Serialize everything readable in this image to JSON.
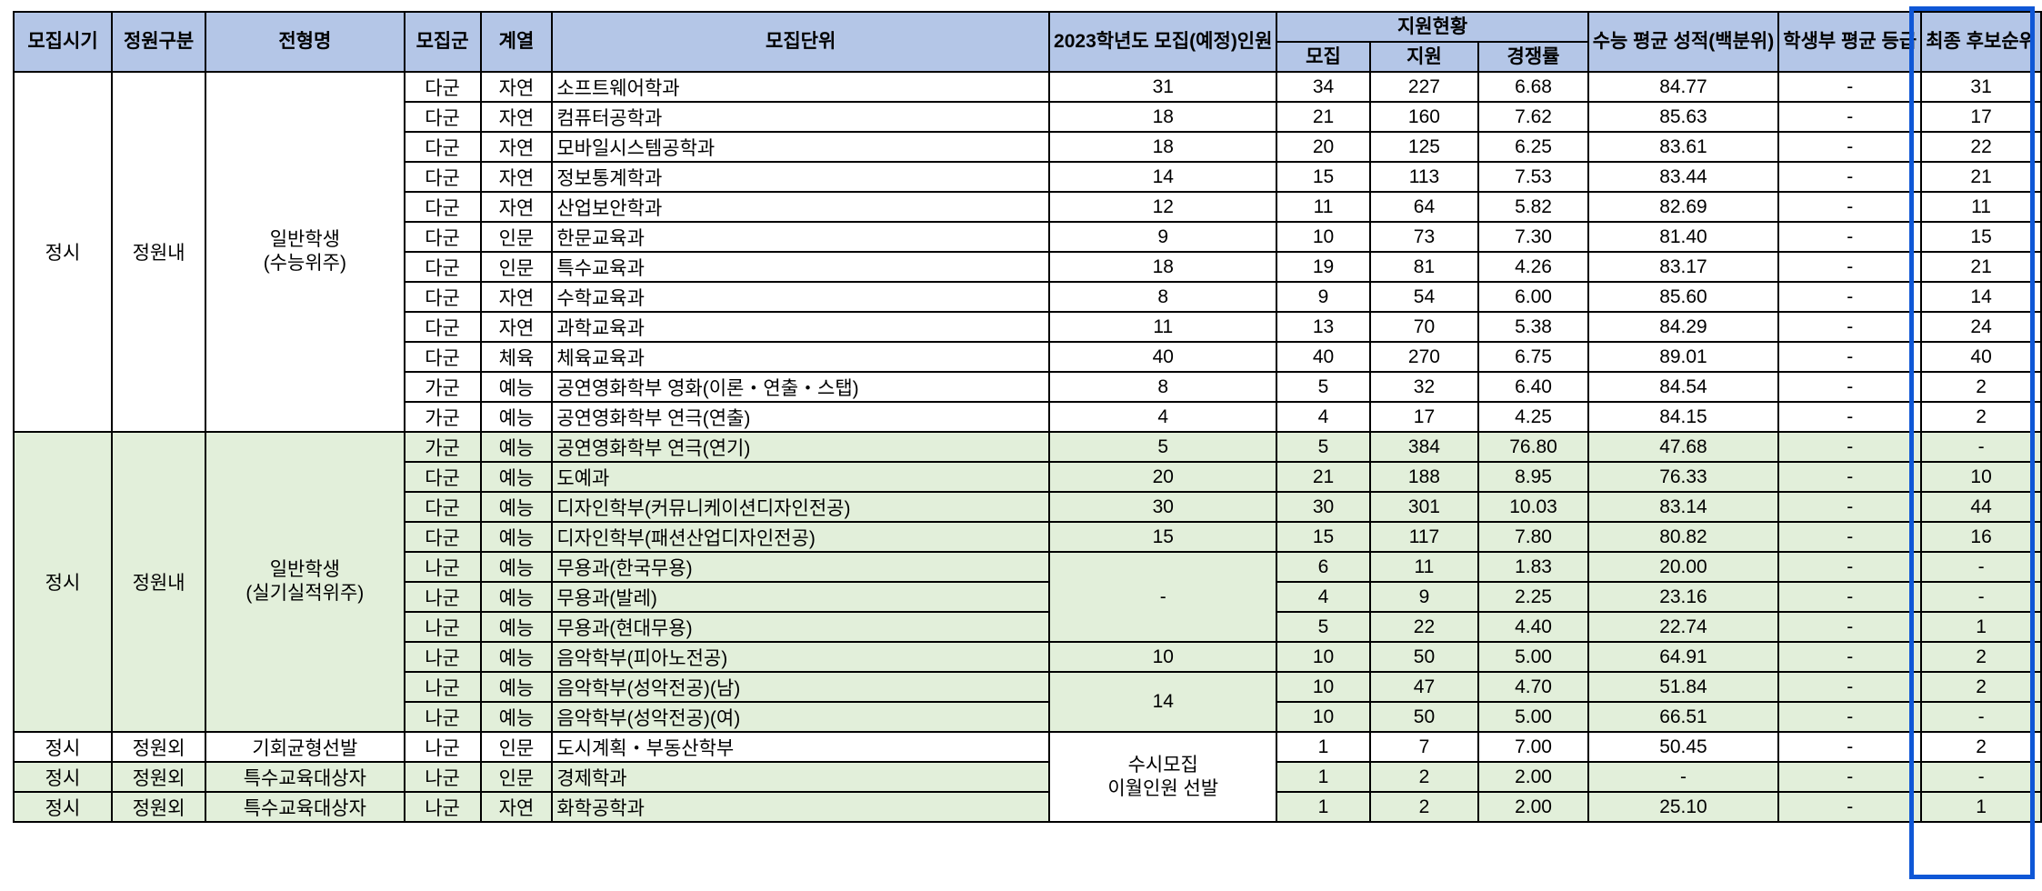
{
  "headers": {
    "period": "모집시기",
    "quota_type": "정원구분",
    "admission_type": "전형명",
    "group": "모집군",
    "field": "계열",
    "unit": "모집단위",
    "planned": "2023학년도\n모집(예정)인원",
    "applications": "지원현황",
    "recruit": "모집",
    "applied": "지원",
    "ratio": "경쟁률",
    "csat": "수능 평균\n성적(백분위)",
    "gpa": "학생부\n평균 등급",
    "rank": "최종\n후보순위"
  },
  "colors": {
    "header": "#b4c6e7",
    "green_row": "#e2efda",
    "highlight_border": "#0f57d6"
  },
  "highlighted_column": "rank",
  "rows": [
    {
      "bg": "white",
      "period": "정시",
      "quota": "정원내",
      "type": "일반학생\n(수능위주)",
      "group": "다군",
      "field": "자연",
      "unit": "소프트웨어학과",
      "planned": "31",
      "recruit": "34",
      "applied": "227",
      "ratio": "6.68",
      "csat": "84.77",
      "gpa": "-",
      "rank": "31"
    },
    {
      "bg": "white",
      "period": null,
      "quota": null,
      "type": null,
      "group": "다군",
      "field": "자연",
      "unit": "컴퓨터공학과",
      "planned": "18",
      "recruit": "21",
      "applied": "160",
      "ratio": "7.62",
      "csat": "85.63",
      "gpa": "-",
      "rank": "17"
    },
    {
      "bg": "white",
      "period": null,
      "quota": null,
      "type": null,
      "group": "다군",
      "field": "자연",
      "unit": "모바일시스템공학과",
      "planned": "18",
      "recruit": "20",
      "applied": "125",
      "ratio": "6.25",
      "csat": "83.61",
      "gpa": "-",
      "rank": "22"
    },
    {
      "bg": "white",
      "period": null,
      "quota": null,
      "type": null,
      "group": "다군",
      "field": "자연",
      "unit": "정보통계학과",
      "planned": "14",
      "recruit": "15",
      "applied": "113",
      "ratio": "7.53",
      "csat": "83.44",
      "gpa": "-",
      "rank": "21"
    },
    {
      "bg": "white",
      "period": null,
      "quota": null,
      "type": null,
      "group": "다군",
      "field": "자연",
      "unit": "산업보안학과",
      "planned": "12",
      "recruit": "11",
      "applied": "64",
      "ratio": "5.82",
      "csat": "82.69",
      "gpa": "-",
      "rank": "11"
    },
    {
      "bg": "white",
      "period": null,
      "quota": null,
      "type": null,
      "group": "다군",
      "field": "인문",
      "unit": "한문교육과",
      "planned": "9",
      "recruit": "10",
      "applied": "73",
      "ratio": "7.30",
      "csat": "81.40",
      "gpa": "-",
      "rank": "15"
    },
    {
      "bg": "white",
      "period": null,
      "quota": null,
      "type": null,
      "group": "다군",
      "field": "인문",
      "unit": "특수교육과",
      "planned": "18",
      "recruit": "19",
      "applied": "81",
      "ratio": "4.26",
      "csat": "83.17",
      "gpa": "-",
      "rank": "21"
    },
    {
      "bg": "white",
      "period": null,
      "quota": null,
      "type": null,
      "group": "다군",
      "field": "자연",
      "unit": "수학교육과",
      "planned": "8",
      "recruit": "9",
      "applied": "54",
      "ratio": "6.00",
      "csat": "85.60",
      "gpa": "-",
      "rank": "14"
    },
    {
      "bg": "white",
      "period": null,
      "quota": null,
      "type": null,
      "group": "다군",
      "field": "자연",
      "unit": "과학교육과",
      "planned": "11",
      "recruit": "13",
      "applied": "70",
      "ratio": "5.38",
      "csat": "84.29",
      "gpa": "-",
      "rank": "24"
    },
    {
      "bg": "white",
      "period": null,
      "quota": null,
      "type": null,
      "group": "다군",
      "field": "체육",
      "unit": "체육교육과",
      "planned": "40",
      "recruit": "40",
      "applied": "270",
      "ratio": "6.75",
      "csat": "89.01",
      "gpa": "-",
      "rank": "40"
    },
    {
      "bg": "white",
      "period": null,
      "quota": null,
      "type": null,
      "group": "가군",
      "field": "예능",
      "unit": "공연영화학부 영화(이론・연출・스탭)",
      "planned": "8",
      "recruit": "5",
      "applied": "32",
      "ratio": "6.40",
      "csat": "84.54",
      "gpa": "-",
      "rank": "2"
    },
    {
      "bg": "white",
      "period": null,
      "quota": null,
      "type": null,
      "group": "가군",
      "field": "예능",
      "unit": "공연영화학부 연극(연출)",
      "planned": "4",
      "recruit": "4",
      "applied": "17",
      "ratio": "4.25",
      "csat": "84.15",
      "gpa": "-",
      "rank": "2"
    },
    {
      "bg": "green",
      "period": "정시",
      "quota": "정원내",
      "type": "일반학생\n(실기실적위주)",
      "group": "가군",
      "field": "예능",
      "unit": "공연영화학부 연극(연기)",
      "planned": "5",
      "recruit": "5",
      "applied": "384",
      "ratio": "76.80",
      "csat": "47.68",
      "gpa": "-",
      "rank": "-"
    },
    {
      "bg": "green",
      "period": null,
      "quota": null,
      "type": null,
      "group": "다군",
      "field": "예능",
      "unit": "도예과",
      "planned": "20",
      "recruit": "21",
      "applied": "188",
      "ratio": "8.95",
      "csat": "76.33",
      "gpa": "-",
      "rank": "10"
    },
    {
      "bg": "green",
      "period": null,
      "quota": null,
      "type": null,
      "group": "다군",
      "field": "예능",
      "unit": "디자인학부(커뮤니케이션디자인전공)",
      "planned": "30",
      "recruit": "30",
      "applied": "301",
      "ratio": "10.03",
      "csat": "83.14",
      "gpa": "-",
      "rank": "44"
    },
    {
      "bg": "green",
      "period": null,
      "quota": null,
      "type": null,
      "group": "다군",
      "field": "예능",
      "unit": "디자인학부(패션산업디자인전공)",
      "planned": "15",
      "recruit": "15",
      "applied": "117",
      "ratio": "7.80",
      "csat": "80.82",
      "gpa": "-",
      "rank": "16"
    },
    {
      "bg": "green",
      "period": null,
      "quota": null,
      "type": null,
      "group": "나군",
      "field": "예능",
      "unit": "무용과(한국무용)",
      "planned": "-",
      "recruit": "6",
      "applied": "11",
      "ratio": "1.83",
      "csat": "20.00",
      "gpa": "-",
      "rank": "-"
    },
    {
      "bg": "green",
      "period": null,
      "quota": null,
      "type": null,
      "group": "나군",
      "field": "예능",
      "unit": "무용과(발레)",
      "planned": null,
      "recruit": "4",
      "applied": "9",
      "ratio": "2.25",
      "csat": "23.16",
      "gpa": "-",
      "rank": "-"
    },
    {
      "bg": "green",
      "period": null,
      "quota": null,
      "type": null,
      "group": "나군",
      "field": "예능",
      "unit": "무용과(현대무용)",
      "planned": null,
      "recruit": "5",
      "applied": "22",
      "ratio": "4.40",
      "csat": "22.74",
      "gpa": "-",
      "rank": "1"
    },
    {
      "bg": "green",
      "period": null,
      "quota": null,
      "type": null,
      "group": "나군",
      "field": "예능",
      "unit": "음악학부(피아노전공)",
      "planned": "10",
      "recruit": "10",
      "applied": "50",
      "ratio": "5.00",
      "csat": "64.91",
      "gpa": "-",
      "rank": "2"
    },
    {
      "bg": "green",
      "period": null,
      "quota": null,
      "type": null,
      "group": "나군",
      "field": "예능",
      "unit": "음악학부(성악전공)(남)",
      "planned": "14",
      "recruit": "10",
      "applied": "47",
      "ratio": "4.70",
      "csat": "51.84",
      "gpa": "-",
      "rank": "2"
    },
    {
      "bg": "green",
      "period": null,
      "quota": null,
      "type": null,
      "group": "나군",
      "field": "예능",
      "unit": "음악학부(성악전공)(여)",
      "planned": null,
      "recruit": "10",
      "applied": "50",
      "ratio": "5.00",
      "csat": "66.51",
      "gpa": "-",
      "rank": "-"
    },
    {
      "bg": "white",
      "period": "정시",
      "quota": "정원외",
      "type": "기회균형선발",
      "group": "나군",
      "field": "인문",
      "unit": "도시계획・부동산학부",
      "planned": "수시모집\n이월인원 선발",
      "recruit": "1",
      "applied": "7",
      "ratio": "7.00",
      "csat": "50.45",
      "gpa": "-",
      "rank": "2"
    },
    {
      "bg": "green",
      "period": "정시",
      "quota": "정원외",
      "type": "특수교육대상자",
      "group": "나군",
      "field": "인문",
      "unit": "경제학과",
      "planned": null,
      "recruit": "1",
      "applied": "2",
      "ratio": "2.00",
      "csat": "-",
      "gpa": "-",
      "rank": "-"
    },
    {
      "bg": "green",
      "period": "정시",
      "quota": "정원외",
      "type": "특수교육대상자",
      "group": "나군",
      "field": "자연",
      "unit": "화학공학과",
      "planned": null,
      "recruit": "1",
      "applied": "2",
      "ratio": "2.00",
      "csat": "25.10",
      "gpa": "-",
      "rank": "1"
    }
  ]
}
